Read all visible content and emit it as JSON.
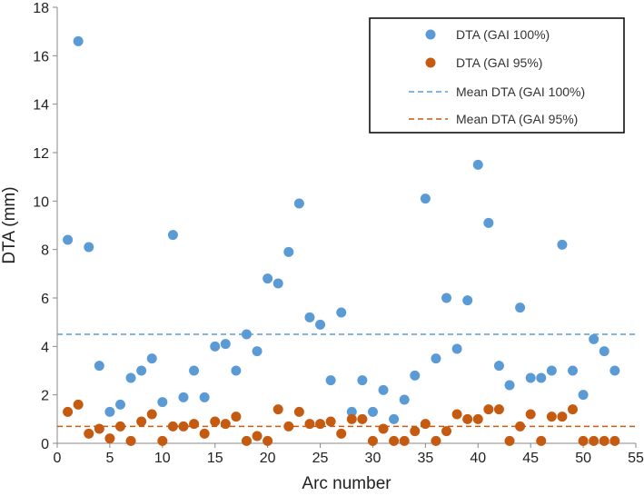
{
  "chart_data": {
    "type": "scatter",
    "title": "",
    "xlabel": "Arc number",
    "ylabel": "DTA (mm)",
    "xlim": [
      0,
      55
    ],
    "ylim": [
      0,
      18
    ],
    "xticks": [
      0,
      5,
      10,
      15,
      20,
      25,
      30,
      35,
      40,
      45,
      50,
      55
    ],
    "yticks": [
      0,
      2,
      4,
      6,
      8,
      10,
      12,
      14,
      16,
      18
    ],
    "grid": false,
    "legend_position": "top-right",
    "series": [
      {
        "name": "DTA (GAI 100%)",
        "kind": "points",
        "color": "#5B9BD5",
        "x": [
          1,
          2,
          3,
          4,
          5,
          6,
          7,
          8,
          9,
          10,
          11,
          12,
          13,
          14,
          15,
          16,
          17,
          18,
          19,
          20,
          21,
          22,
          23,
          24,
          25,
          26,
          27,
          28,
          29,
          30,
          31,
          32,
          33,
          34,
          35,
          36,
          37,
          38,
          39,
          40,
          41,
          42,
          43,
          44,
          45,
          46,
          47,
          48,
          49,
          50,
          51,
          52,
          53
        ],
        "y": [
          8.4,
          16.6,
          8.1,
          3.2,
          1.3,
          1.6,
          2.7,
          3.0,
          3.5,
          1.7,
          8.6,
          1.9,
          3.0,
          1.9,
          4.0,
          4.1,
          3.0,
          4.5,
          3.8,
          6.8,
          6.6,
          7.9,
          9.9,
          5.2,
          4.9,
          2.6,
          5.4,
          1.3,
          2.6,
          1.3,
          2.2,
          1.0,
          1.8,
          2.8,
          10.1,
          3.5,
          6.0,
          3.9,
          5.9,
          11.5,
          9.1,
          3.2,
          2.4,
          5.6,
          2.7,
          2.7,
          3.0,
          8.2,
          3.0,
          2.0,
          4.3,
          3.8,
          3.0
        ]
      },
      {
        "name": "DTA (GAI 95%)",
        "kind": "points",
        "color": "#C55A11",
        "x": [
          1,
          2,
          3,
          4,
          5,
          6,
          7,
          8,
          9,
          10,
          11,
          12,
          13,
          14,
          15,
          16,
          17,
          18,
          19,
          20,
          21,
          22,
          23,
          24,
          25,
          26,
          27,
          28,
          29,
          30,
          31,
          32,
          33,
          34,
          35,
          36,
          37,
          38,
          39,
          40,
          41,
          42,
          43,
          44,
          45,
          46,
          47,
          48,
          49,
          50,
          51,
          52,
          53
        ],
        "y": [
          1.3,
          1.6,
          0.4,
          0.6,
          0.2,
          0.7,
          0.1,
          0.9,
          1.2,
          0.1,
          0.7,
          0.7,
          0.8,
          0.4,
          0.9,
          0.8,
          1.1,
          0.1,
          0.3,
          0.1,
          1.4,
          0.7,
          1.3,
          0.8,
          0.8,
          0.9,
          0.4,
          1.0,
          1.0,
          0.1,
          0.6,
          0.1,
          0.1,
          0.5,
          0.8,
          0.1,
          0.5,
          1.2,
          1.0,
          1.0,
          1.4,
          1.4,
          0.1,
          0.7,
          1.2,
          0.1,
          1.1,
          1.1,
          1.4,
          0.1,
          0.1,
          0.1,
          0.1
        ]
      },
      {
        "name": "Mean DTA (GAI 100%)",
        "kind": "hline",
        "color": "#5B9BD5",
        "value": 4.5
      },
      {
        "name": "Mean DTA (GAI 95%)",
        "kind": "hline",
        "color": "#C55A11",
        "value": 0.7
      }
    ]
  }
}
